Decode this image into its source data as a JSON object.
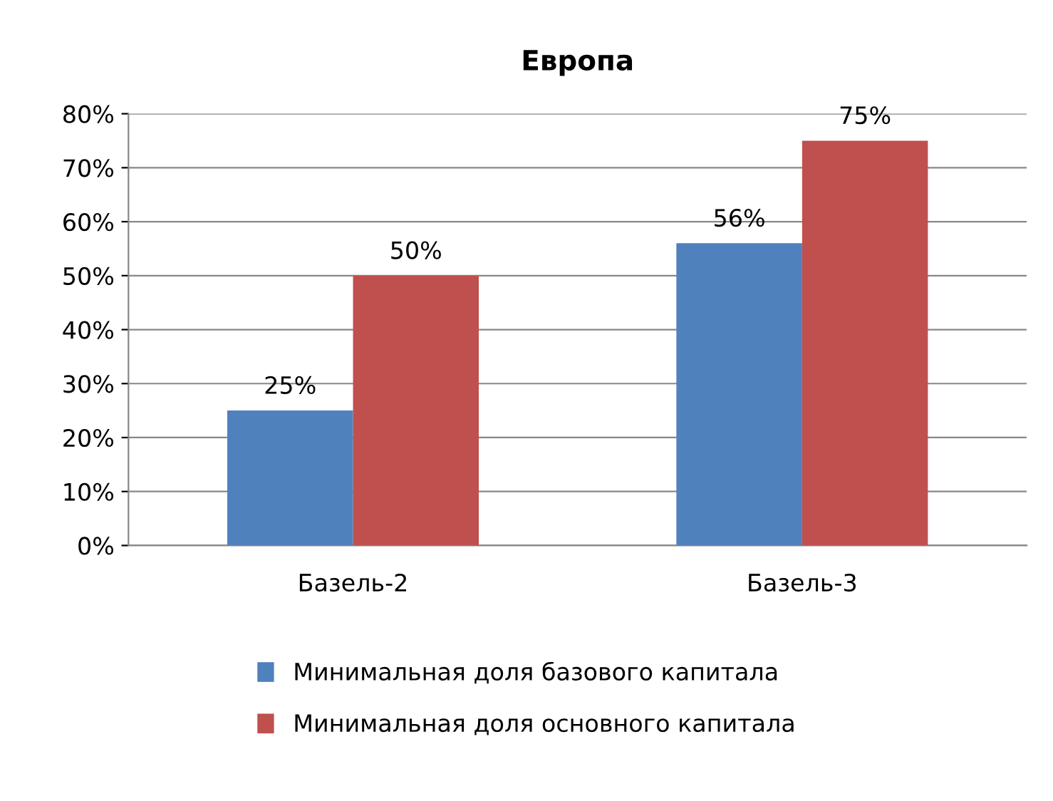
{
  "chart_data": {
    "type": "bar",
    "title": "Европа",
    "categories": [
      "Базель-2",
      "Базель-3"
    ],
    "series": [
      {
        "name": "Минимальная доля базового капитала",
        "color": "#4f81bd",
        "values": [
          25,
          56
        ],
        "value_labels": [
          "25%",
          "56%"
        ]
      },
      {
        "name": "Минимальная доля основного капитала",
        "color": "#c0504d",
        "values": [
          50,
          75
        ],
        "value_labels": [
          "50%",
          "75%"
        ]
      }
    ],
    "ylim": [
      0,
      80
    ],
    "yticks": [
      {
        "value": 0,
        "label": "0%"
      },
      {
        "value": 10,
        "label": "10%"
      },
      {
        "value": 20,
        "label": "20%"
      },
      {
        "value": 30,
        "label": "30%"
      },
      {
        "value": 40,
        "label": "40%"
      },
      {
        "value": 50,
        "label": "50%"
      },
      {
        "value": 60,
        "label": "60%"
      },
      {
        "value": 70,
        "label": "70%"
      },
      {
        "value": 80,
        "label": "80%"
      }
    ],
    "grid": "y",
    "legend": "bottom"
  }
}
